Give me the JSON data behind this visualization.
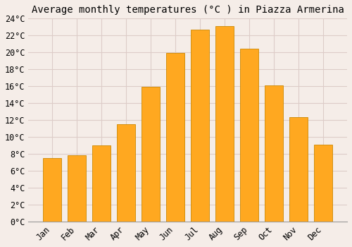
{
  "title": "Average monthly temperatures (°C ) in Piazza Armerina",
  "months": [
    "Jan",
    "Feb",
    "Mar",
    "Apr",
    "May",
    "Jun",
    "Jul",
    "Aug",
    "Sep",
    "Oct",
    "Nov",
    "Dec"
  ],
  "temperatures": [
    7.5,
    7.8,
    9.0,
    11.5,
    15.9,
    19.9,
    22.7,
    23.1,
    20.4,
    16.1,
    12.3,
    9.1
  ],
  "bar_color": "#FFA820",
  "bar_edge_color": "#CC8800",
  "background_color": "#F5EDE8",
  "plot_bg_color": "#F5EDE8",
  "grid_color": "#DDCCC8",
  "title_fontsize": 10,
  "tick_fontsize": 8.5,
  "ylim": [
    0,
    24
  ],
  "yticks": [
    0,
    2,
    4,
    6,
    8,
    10,
    12,
    14,
    16,
    18,
    20,
    22,
    24
  ]
}
